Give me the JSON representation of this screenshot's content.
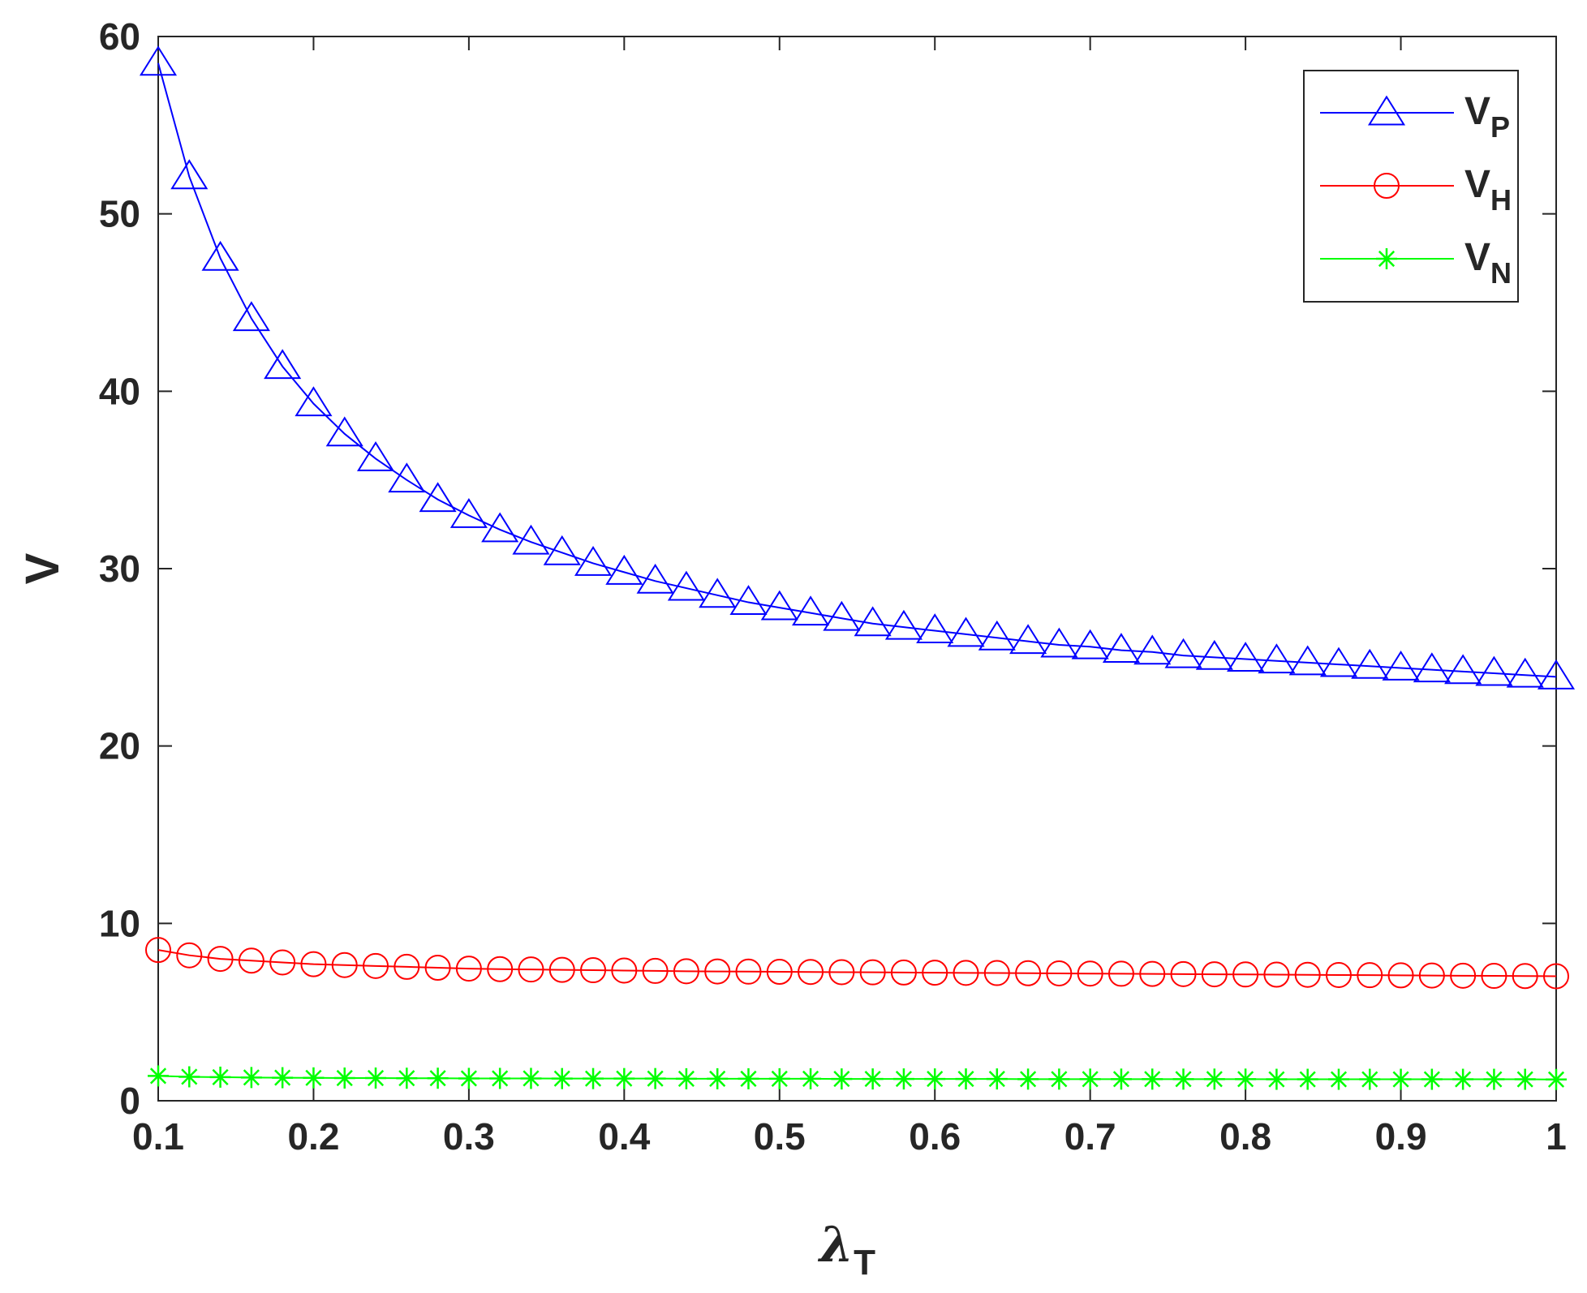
{
  "chart_data": {
    "type": "line",
    "title": "",
    "xlabel": "λ",
    "xlabel_sub": "T",
    "ylabel": "V",
    "xlim": [
      0.1,
      1
    ],
    "ylim": [
      0,
      60
    ],
    "xticks": [
      0.1,
      0.2,
      0.3,
      0.4,
      0.5,
      0.6,
      0.7,
      0.8,
      0.9,
      1
    ],
    "xtick_labels": [
      "0.1",
      "0.2",
      "0.3",
      "0.4",
      "0.5",
      "0.6",
      "0.7",
      "0.8",
      "0.9",
      "1"
    ],
    "yticks": [
      0,
      10,
      20,
      30,
      40,
      50,
      60
    ],
    "ytick_labels": [
      "0",
      "10",
      "20",
      "30",
      "40",
      "50",
      "60"
    ],
    "grid": false,
    "legend_position": "top-right",
    "x": [
      0.1,
      0.12,
      0.14,
      0.16,
      0.18,
      0.2,
      0.22,
      0.24,
      0.26,
      0.28,
      0.3,
      0.32,
      0.34,
      0.36,
      0.38,
      0.4,
      0.42,
      0.44,
      0.46,
      0.48,
      0.5,
      0.52,
      0.54,
      0.56,
      0.58,
      0.6,
      0.62,
      0.64,
      0.66,
      0.68,
      0.7,
      0.72,
      0.74,
      0.76,
      0.78,
      0.8,
      0.82,
      0.84,
      0.86,
      0.88,
      0.9,
      0.92,
      0.94,
      0.96,
      0.98,
      1.0
    ],
    "series": [
      {
        "name": "V",
        "name_sub": "P",
        "color": "#0000ff",
        "marker": "triangle",
        "values": [
          58.5,
          52.1,
          47.5,
          44.1,
          41.4,
          39.3,
          37.6,
          36.2,
          35.0,
          33.9,
          33.0,
          32.2,
          31.5,
          30.9,
          30.3,
          29.8,
          29.3,
          28.9,
          28.5,
          28.1,
          27.8,
          27.5,
          27.2,
          26.9,
          26.7,
          26.5,
          26.3,
          26.1,
          25.9,
          25.7,
          25.6,
          25.4,
          25.3,
          25.1,
          25.0,
          24.9,
          24.8,
          24.7,
          24.6,
          24.5,
          24.4,
          24.3,
          24.2,
          24.1,
          24.0,
          23.9
        ]
      },
      {
        "name": "V",
        "name_sub": "H",
        "color": "#ff0000",
        "marker": "circle",
        "values": [
          8.5,
          8.2,
          8.0,
          7.9,
          7.8,
          7.7,
          7.65,
          7.6,
          7.55,
          7.5,
          7.45,
          7.42,
          7.4,
          7.38,
          7.36,
          7.34,
          7.32,
          7.3,
          7.29,
          7.28,
          7.27,
          7.26,
          7.25,
          7.24,
          7.23,
          7.22,
          7.21,
          7.2,
          7.19,
          7.18,
          7.17,
          7.16,
          7.15,
          7.14,
          7.13,
          7.12,
          7.11,
          7.1,
          7.09,
          7.08,
          7.07,
          7.06,
          7.05,
          7.04,
          7.03,
          7.02
        ]
      },
      {
        "name": "V",
        "name_sub": "N",
        "color": "#00ff00",
        "marker": "asterisk",
        "values": [
          1.4,
          1.35,
          1.33,
          1.31,
          1.3,
          1.29,
          1.28,
          1.28,
          1.27,
          1.27,
          1.26,
          1.26,
          1.26,
          1.25,
          1.25,
          1.25,
          1.25,
          1.24,
          1.24,
          1.24,
          1.24,
          1.24,
          1.23,
          1.23,
          1.23,
          1.23,
          1.23,
          1.23,
          1.22,
          1.22,
          1.22,
          1.22,
          1.22,
          1.22,
          1.22,
          1.22,
          1.21,
          1.21,
          1.21,
          1.21,
          1.21,
          1.21,
          1.21,
          1.21,
          1.21,
          1.2
        ]
      }
    ]
  }
}
